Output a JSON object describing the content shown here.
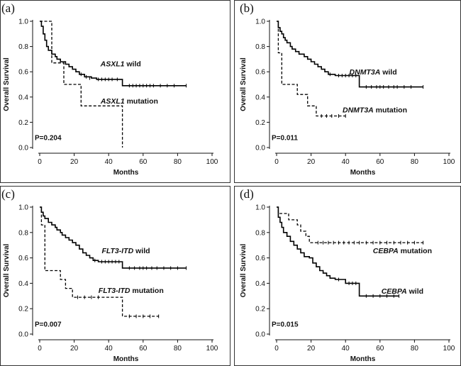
{
  "chart_data": [
    {
      "type": "line",
      "panel": "(a)",
      "title": "",
      "xlabel": "Months",
      "ylabel": "Overall Survival",
      "xlim": [
        0,
        100
      ],
      "ylim": [
        0.0,
        1.0
      ],
      "xticks": [
        "0",
        "20",
        "40",
        "60",
        "80",
        "100"
      ],
      "yticks": [
        "0.0",
        "0.2",
        "0.4",
        "0.6",
        "0.8",
        "1.0"
      ],
      "pvalue": "P=0.204",
      "series": [
        {
          "name": "ASXL1 wild",
          "gene": "ASXL1",
          "suffix": " wild",
          "style": "solid",
          "label_anchor": [
            47,
            0.665
          ],
          "steps": [
            [
              0,
              1.0
            ],
            [
              1,
              0.96
            ],
            [
              2,
              0.9
            ],
            [
              3,
              0.85
            ],
            [
              4,
              0.8
            ],
            [
              5,
              0.77
            ],
            [
              7,
              0.74
            ],
            [
              9,
              0.72
            ],
            [
              10,
              0.7
            ],
            [
              12,
              0.68
            ],
            [
              15,
              0.66
            ],
            [
              17,
              0.64
            ],
            [
              19,
              0.62
            ],
            [
              21,
              0.6
            ],
            [
              23,
              0.58
            ],
            [
              26,
              0.56
            ],
            [
              30,
              0.55
            ],
            [
              33,
              0.54
            ],
            [
              48,
              0.49
            ],
            [
              85,
              0.49
            ]
          ],
          "censors": [
            [
              24,
              0.58
            ],
            [
              27,
              0.56
            ],
            [
              29,
              0.55
            ],
            [
              34,
              0.54
            ],
            [
              36,
              0.54
            ],
            [
              38,
              0.54
            ],
            [
              40,
              0.54
            ],
            [
              42,
              0.54
            ],
            [
              45,
              0.54
            ],
            [
              52,
              0.49
            ],
            [
              54,
              0.49
            ],
            [
              56,
              0.49
            ],
            [
              58,
              0.49
            ],
            [
              60,
              0.49
            ],
            [
              62,
              0.49
            ],
            [
              64,
              0.49
            ],
            [
              66,
              0.49
            ],
            [
              70,
              0.49
            ],
            [
              74,
              0.49
            ],
            [
              78,
              0.49
            ],
            [
              85,
              0.49
            ]
          ]
        },
        {
          "name": "ASXL1 mutation",
          "gene": "ASXL1",
          "suffix": " mutation",
          "style": "dashed",
          "label_anchor": [
            52,
            0.37
          ],
          "steps": [
            [
              0,
              1.0
            ],
            [
              7,
              0.67
            ],
            [
              13,
              0.67
            ],
            [
              14,
              0.5
            ],
            [
              24,
              0.33
            ],
            [
              48,
              0.0
            ]
          ],
          "censors": []
        }
      ]
    },
    {
      "type": "line",
      "panel": "(b)",
      "title": "",
      "xlabel": "Months",
      "ylabel": "Overall Survival",
      "xlim": [
        0,
        100
      ],
      "ylim": [
        0.0,
        1.0
      ],
      "xticks": [
        "0",
        "20",
        "40",
        "60",
        "80",
        "100"
      ],
      "yticks": [
        "0.0",
        "0.2",
        "0.4",
        "0.6",
        "0.8",
        "1.0"
      ],
      "pvalue": "P=0.011",
      "series": [
        {
          "name": "DNMT3A wild",
          "gene": "DNMT3A",
          "suffix": " wild",
          "style": "solid",
          "label_anchor": [
            56,
            0.6
          ],
          "steps": [
            [
              0,
              1.0
            ],
            [
              1,
              0.95
            ],
            [
              2,
              0.92
            ],
            [
              3,
              0.9
            ],
            [
              4,
              0.87
            ],
            [
              5,
              0.85
            ],
            [
              6,
              0.83
            ],
            [
              8,
              0.8
            ],
            [
              9,
              0.78
            ],
            [
              11,
              0.76
            ],
            [
              13,
              0.74
            ],
            [
              16,
              0.72
            ],
            [
              18,
              0.7
            ],
            [
              20,
              0.68
            ],
            [
              22,
              0.66
            ],
            [
              24,
              0.64
            ],
            [
              26,
              0.62
            ],
            [
              28,
              0.6
            ],
            [
              30,
              0.58
            ],
            [
              34,
              0.57
            ],
            [
              48,
              0.48
            ],
            [
              85,
              0.48
            ]
          ],
          "censors": [
            [
              31,
              0.58
            ],
            [
              36,
              0.57
            ],
            [
              38,
              0.57
            ],
            [
              40,
              0.57
            ],
            [
              42,
              0.57
            ],
            [
              44,
              0.57
            ],
            [
              46,
              0.57
            ],
            [
              52,
              0.48
            ],
            [
              55,
              0.48
            ],
            [
              58,
              0.48
            ],
            [
              60,
              0.48
            ],
            [
              62,
              0.48
            ],
            [
              65,
              0.48
            ],
            [
              68,
              0.48
            ],
            [
              70,
              0.48
            ],
            [
              74,
              0.48
            ],
            [
              78,
              0.48
            ],
            [
              85,
              0.48
            ]
          ]
        },
        {
          "name": "DNMT3A mutation",
          "gene": "DNMT3A",
          "suffix": " mutation",
          "style": "dashed",
          "label_anchor": [
            57,
            0.3
          ],
          "steps": [
            [
              0,
              1.0
            ],
            [
              1,
              0.75
            ],
            [
              3,
              0.5
            ],
            [
              12,
              0.42
            ],
            [
              18,
              0.33
            ],
            [
              23,
              0.25
            ],
            [
              40,
              0.25
            ]
          ],
          "censors": [
            [
              26,
              0.25
            ],
            [
              29,
              0.25
            ],
            [
              32,
              0.25
            ],
            [
              36,
              0.25
            ],
            [
              40,
              0.25
            ]
          ]
        }
      ]
    },
    {
      "type": "line",
      "panel": "(c)",
      "title": "",
      "xlabel": "Months",
      "ylabel": "Overall Survival",
      "xlim": [
        0,
        100
      ],
      "ylim": [
        0.0,
        1.0
      ],
      "xticks": [
        "0",
        "20",
        "40",
        "60",
        "80",
        "100"
      ],
      "yticks": [
        "0.0",
        "0.2",
        "0.4",
        "0.6",
        "0.8",
        "1.0"
      ],
      "pvalue": "P=0.007",
      "series": [
        {
          "name": "FLT3-ITD wild",
          "gene": "FLT3-ITD",
          "suffix": " wild",
          "style": "solid",
          "label_anchor": [
            50,
            0.66
          ],
          "steps": [
            [
              0,
              1.0
            ],
            [
              1,
              0.96
            ],
            [
              2,
              0.93
            ],
            [
              3,
              0.91
            ],
            [
              5,
              0.88
            ],
            [
              7,
              0.86
            ],
            [
              9,
              0.84
            ],
            [
              10,
              0.82
            ],
            [
              12,
              0.8
            ],
            [
              13,
              0.78
            ],
            [
              15,
              0.76
            ],
            [
              17,
              0.74
            ],
            [
              19,
              0.72
            ],
            [
              21,
              0.7
            ],
            [
              23,
              0.67
            ],
            [
              25,
              0.64
            ],
            [
              27,
              0.62
            ],
            [
              29,
              0.6
            ],
            [
              31,
              0.58
            ],
            [
              34,
              0.57
            ],
            [
              48,
              0.52
            ],
            [
              85,
              0.52
            ]
          ],
          "censors": [
            [
              32,
              0.58
            ],
            [
              36,
              0.57
            ],
            [
              38,
              0.57
            ],
            [
              40,
              0.57
            ],
            [
              42,
              0.57
            ],
            [
              44,
              0.57
            ],
            [
              46,
              0.57
            ],
            [
              52,
              0.52
            ],
            [
              55,
              0.52
            ],
            [
              58,
              0.52
            ],
            [
              60,
              0.52
            ],
            [
              62,
              0.52
            ],
            [
              65,
              0.52
            ],
            [
              68,
              0.52
            ],
            [
              72,
              0.52
            ],
            [
              76,
              0.52
            ],
            [
              80,
              0.52
            ],
            [
              85,
              0.52
            ]
          ]
        },
        {
          "name": "FLT3-ITD mutation",
          "gene": "FLT3-ITD",
          "suffix": " mutation",
          "style": "dashed",
          "label_anchor": [
            53,
            0.345
          ],
          "steps": [
            [
              0,
              1.0
            ],
            [
              1,
              0.86
            ],
            [
              3,
              0.5
            ],
            [
              12,
              0.43
            ],
            [
              15,
              0.36
            ],
            [
              19,
              0.29
            ],
            [
              48,
              0.14
            ],
            [
              69,
              0.14
            ]
          ],
          "censors": [
            [
              22,
              0.29
            ],
            [
              26,
              0.29
            ],
            [
              30,
              0.29
            ],
            [
              34,
              0.29
            ],
            [
              52,
              0.14
            ],
            [
              56,
              0.14
            ],
            [
              60,
              0.14
            ],
            [
              64,
              0.14
            ],
            [
              69,
              0.14
            ]
          ]
        }
      ]
    },
    {
      "type": "line",
      "panel": "(d)",
      "title": "",
      "xlabel": "Months",
      "ylabel": "Overall Survival",
      "xlim": [
        0,
        100
      ],
      "ylim": [
        0.0,
        1.0
      ],
      "xticks": [
        "0",
        "20",
        "40",
        "60",
        "80",
        "100"
      ],
      "yticks": [
        "0.0",
        "0.2",
        "0.4",
        "0.6",
        "0.8",
        "1.0"
      ],
      "pvalue": "P=0.015",
      "series": [
        {
          "name": "CEBPA mutation",
          "gene": "CEBPA",
          "suffix": " mutation",
          "style": "dashed",
          "label_anchor": [
            73,
            0.66
          ],
          "steps": [
            [
              0,
              1.0
            ],
            [
              1,
              0.95
            ],
            [
              7,
              0.9
            ],
            [
              12,
              0.86
            ],
            [
              14,
              0.81
            ],
            [
              17,
              0.77
            ],
            [
              19,
              0.72
            ],
            [
              85,
              0.72
            ]
          ],
          "censors": [
            [
              24,
              0.72
            ],
            [
              27,
              0.72
            ],
            [
              30,
              0.72
            ],
            [
              33,
              0.72
            ],
            [
              36,
              0.72
            ],
            [
              39,
              0.72
            ],
            [
              42,
              0.72
            ],
            [
              45,
              0.72
            ],
            [
              48,
              0.72
            ],
            [
              52,
              0.72
            ],
            [
              56,
              0.72
            ],
            [
              60,
              0.72
            ],
            [
              64,
              0.72
            ],
            [
              68,
              0.72
            ],
            [
              72,
              0.72
            ],
            [
              76,
              0.72
            ],
            [
              80,
              0.72
            ],
            [
              85,
              0.72
            ]
          ]
        },
        {
          "name": "CEBPA wild",
          "gene": "CEBPA",
          "suffix": " wild",
          "style": "solid",
          "label_anchor": [
            73,
            0.34
          ],
          "steps": [
            [
              0,
              1.0
            ],
            [
              1,
              0.92
            ],
            [
              2,
              0.88
            ],
            [
              3,
              0.84
            ],
            [
              4,
              0.8
            ],
            [
              6,
              0.77
            ],
            [
              8,
              0.73
            ],
            [
              10,
              0.7
            ],
            [
              12,
              0.67
            ],
            [
              14,
              0.64
            ],
            [
              16,
              0.61
            ],
            [
              19,
              0.6
            ],
            [
              21,
              0.56
            ],
            [
              23,
              0.53
            ],
            [
              25,
              0.5
            ],
            [
              27,
              0.48
            ],
            [
              29,
              0.46
            ],
            [
              31,
              0.44
            ],
            [
              34,
              0.43
            ],
            [
              40,
              0.4
            ],
            [
              48,
              0.3
            ],
            [
              71,
              0.3
            ]
          ],
          "censors": [
            [
              36,
              0.43
            ],
            [
              42,
              0.4
            ],
            [
              44,
              0.4
            ],
            [
              46,
              0.4
            ],
            [
              52,
              0.3
            ],
            [
              56,
              0.3
            ],
            [
              60,
              0.3
            ],
            [
              64,
              0.3
            ],
            [
              68,
              0.3
            ],
            [
              71,
              0.3
            ]
          ]
        }
      ]
    }
  ]
}
